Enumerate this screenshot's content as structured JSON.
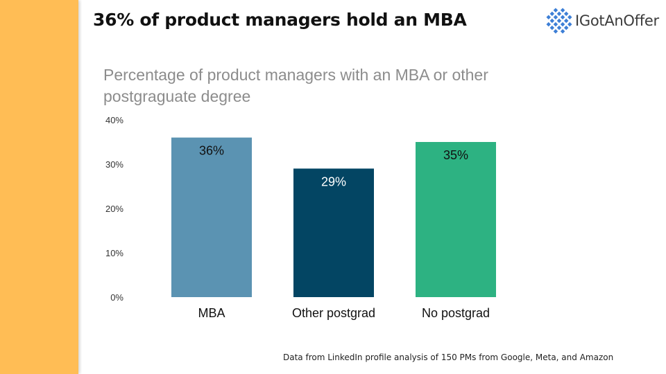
{
  "slide": {
    "title": "36% of product managers hold an MBA",
    "footnote": "Data from LinkedIn profile analysis of 150 PMs from Google, Meta, and Amazon"
  },
  "logo": {
    "text": "IGotAnOffer",
    "icon": "diamond-grid-icon",
    "color": "#3d7fd6"
  },
  "colors": {
    "side_band": "#ffbd55"
  },
  "chart_data": {
    "type": "bar",
    "title": "Percentage of product managers with an MBA or other postgraguate degree",
    "categories": [
      "MBA",
      "Other postgrad",
      "No postgrad"
    ],
    "values": [
      36,
      29,
      35
    ],
    "data_labels": [
      "36%",
      "29%",
      "35%"
    ],
    "colors": [
      "#5b93b2",
      "#034563",
      "#2db282"
    ],
    "label_colors": [
      "#111111",
      "#ffffff",
      "#111111"
    ],
    "ylim": [
      0,
      40
    ],
    "yticks": [
      0,
      10,
      20,
      30,
      40
    ],
    "ytick_labels": [
      "0%",
      "10%",
      "20%",
      "30%",
      "40%"
    ],
    "grid": false,
    "legend": "none"
  }
}
